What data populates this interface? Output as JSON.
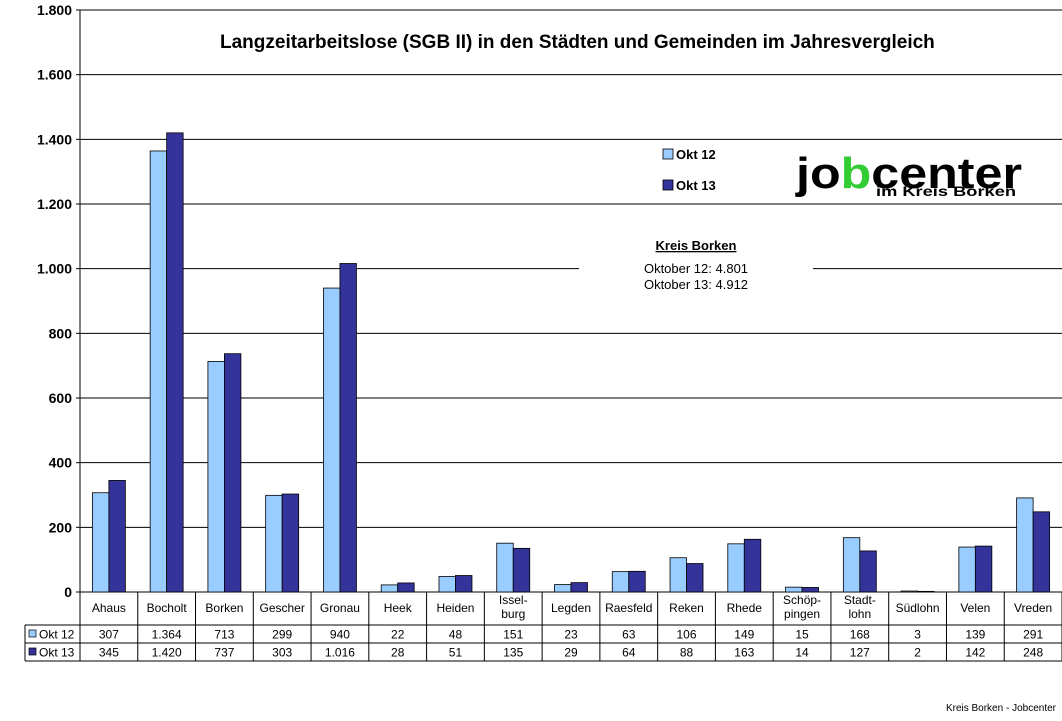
{
  "chart_data": {
    "type": "bar",
    "title": "Langzeitarbeitslose (SGB II) in den Städten und Gemeinden im Jahresvergleich",
    "categories": [
      [
        "Ahaus"
      ],
      [
        "Bocholt"
      ],
      [
        "Borken"
      ],
      [
        "Gescher"
      ],
      [
        "Gronau"
      ],
      [
        "Heek"
      ],
      [
        "Heiden"
      ],
      [
        "Issel-",
        "burg"
      ],
      [
        "Legden"
      ],
      [
        "Raesfeld"
      ],
      [
        "Reken"
      ],
      [
        "Rhede"
      ],
      [
        "Schöp-",
        "pingen"
      ],
      [
        "Stadt-",
        "lohn"
      ],
      [
        "Südlohn"
      ],
      [
        "Velen"
      ],
      [
        "Vreden"
      ]
    ],
    "series": [
      {
        "name": "Okt 12",
        "color": "#99CCFF",
        "values": [
          307,
          1364,
          713,
          299,
          940,
          22,
          48,
          151,
          23,
          63,
          106,
          149,
          15,
          168,
          3,
          139,
          291
        ],
        "labels": [
          "307",
          "1.364",
          "713",
          "299",
          "940",
          "22",
          "48",
          "151",
          "23",
          "63",
          "106",
          "149",
          "15",
          "168",
          "3",
          "139",
          "291"
        ]
      },
      {
        "name": "Okt 13",
        "color": "#333399",
        "values": [
          345,
          1420,
          737,
          303,
          1016,
          28,
          51,
          135,
          29,
          64,
          88,
          163,
          14,
          127,
          2,
          142,
          248
        ],
        "labels": [
          "345",
          "1.420",
          "737",
          "303",
          "1.016",
          "28",
          "51",
          "135",
          "29",
          "64",
          "88",
          "163",
          "14",
          "127",
          "2",
          "142",
          "248"
        ]
      }
    ],
    "ylim": [
      0,
      1800
    ],
    "yticks": [
      0,
      200,
      400,
      600,
      800,
      1000,
      1200,
      1400,
      1600,
      1800
    ],
    "ytick_labels": [
      "0",
      "200",
      "400",
      "600",
      "800",
      "1.000",
      "1.200",
      "1.400",
      "1.600",
      "1.800"
    ],
    "grid": true,
    "legend": "upper-right",
    "data_table": true
  },
  "annotation": {
    "heading": "Kreis Borken",
    "lines": [
      "Oktober 12: 4.801",
      "Oktober 13: 4.912"
    ]
  },
  "logo": {
    "line1": "jobcenter",
    "line2": "im Kreis Borken",
    "accent_color": "#33CC33"
  },
  "footer": "Kreis Borken - Jobcenter"
}
